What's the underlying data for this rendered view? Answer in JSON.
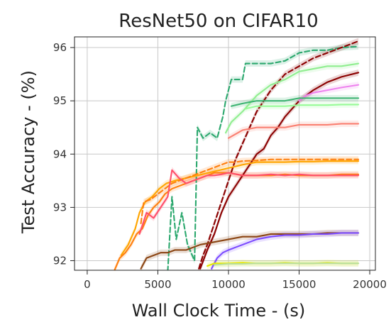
{
  "chart_data": {
    "type": "line",
    "title": "ResNet50 on CIFAR10",
    "xlabel": "Wall Clock Time - (s)",
    "ylabel": "Test Accuracy - (%)",
    "xlim": [
      -900,
      20400
    ],
    "ylim": [
      91.82,
      96.2
    ],
    "xticks": [
      0,
      5000,
      10000,
      15000,
      20000
    ],
    "yticks": [
      92,
      93,
      94,
      95,
      96
    ],
    "grid": true,
    "legend": "none",
    "series": [
      {
        "color": "#2ca86e",
        "style": "dashed",
        "band": true,
        "points": [
          [
            5700,
            91.8
          ],
          [
            6000,
            93.2
          ],
          [
            6300,
            92.4
          ],
          [
            6700,
            92.9
          ],
          [
            7100,
            92.3
          ],
          [
            7600,
            92.0
          ],
          [
            7800,
            94.5
          ],
          [
            8200,
            94.3
          ],
          [
            8700,
            94.4
          ],
          [
            9200,
            94.3
          ],
          [
            9600,
            94.7
          ],
          [
            9800,
            95.0
          ],
          [
            10200,
            95.4
          ],
          [
            11000,
            95.4
          ],
          [
            11200,
            95.7
          ],
          [
            12000,
            95.7
          ],
          [
            13000,
            95.7
          ],
          [
            14000,
            95.75
          ],
          [
            15000,
            95.9
          ],
          [
            16000,
            95.95
          ],
          [
            17000,
            95.95
          ],
          [
            18000,
            96.0
          ],
          [
            19200,
            96.02
          ]
        ]
      },
      {
        "color": "#8b0000",
        "style": "dashed",
        "band": true,
        "points": [
          [
            7900,
            91.85
          ],
          [
            8200,
            92.1
          ],
          [
            8500,
            92.3
          ],
          [
            9000,
            92.7
          ],
          [
            9500,
            93.1
          ],
          [
            10000,
            93.5
          ],
          [
            10500,
            93.9
          ],
          [
            11000,
            94.2
          ],
          [
            11500,
            94.5
          ],
          [
            12000,
            94.8
          ],
          [
            12500,
            95.0
          ],
          [
            13000,
            95.2
          ],
          [
            13500,
            95.35
          ],
          [
            14000,
            95.5
          ],
          [
            15000,
            95.65
          ],
          [
            16000,
            95.8
          ],
          [
            17000,
            95.9
          ],
          [
            18000,
            96.0
          ],
          [
            19200,
            96.12
          ]
        ]
      },
      {
        "color": "#8b0000",
        "style": "solid",
        "band": true,
        "points": [
          [
            8000,
            91.85
          ],
          [
            8500,
            92.2
          ],
          [
            9000,
            92.5
          ],
          [
            9500,
            92.9
          ],
          [
            10000,
            93.2
          ],
          [
            10500,
            93.4
          ],
          [
            11000,
            93.6
          ],
          [
            11500,
            93.8
          ],
          [
            12000,
            94.0
          ],
          [
            12500,
            94.1
          ],
          [
            13000,
            94.35
          ],
          [
            13500,
            94.5
          ],
          [
            14000,
            94.7
          ],
          [
            15000,
            95.0
          ],
          [
            16000,
            95.2
          ],
          [
            17000,
            95.35
          ],
          [
            18000,
            95.45
          ],
          [
            19200,
            95.53
          ]
        ]
      },
      {
        "color": "#90ee90",
        "style": "solid",
        "band": true,
        "points": [
          [
            9800,
            94.4
          ],
          [
            10200,
            94.6
          ],
          [
            11000,
            94.8
          ],
          [
            12000,
            95.1
          ],
          [
            13000,
            95.3
          ],
          [
            14000,
            95.4
          ],
          [
            15000,
            95.55
          ],
          [
            16000,
            95.6
          ],
          [
            17000,
            95.65
          ],
          [
            18000,
            95.65
          ],
          [
            19200,
            95.7
          ]
        ]
      },
      {
        "color": "#ee82ee",
        "style": "solid",
        "band": true,
        "points": [
          [
            15000,
            95.0
          ],
          [
            15500,
            95.1
          ],
          [
            16000,
            95.15
          ],
          [
            17000,
            95.2
          ],
          [
            18000,
            95.25
          ],
          [
            19200,
            95.3
          ]
        ]
      },
      {
        "color": "#3cb371",
        "style": "solid",
        "band": true,
        "points": [
          [
            10200,
            94.9
          ],
          [
            11000,
            94.95
          ],
          [
            12000,
            95.0
          ],
          [
            13000,
            95.0
          ],
          [
            14000,
            95.0
          ],
          [
            15000,
            95.05
          ],
          [
            16000,
            95.05
          ],
          [
            17000,
            95.05
          ],
          [
            18000,
            95.05
          ],
          [
            19200,
            95.05
          ]
        ]
      },
      {
        "color": "#98fb98",
        "style": "solid",
        "band": true,
        "points": [
          [
            11200,
            94.85
          ],
          [
            12000,
            94.9
          ],
          [
            13000,
            94.9
          ],
          [
            14000,
            94.9
          ],
          [
            15000,
            94.92
          ],
          [
            16000,
            94.92
          ],
          [
            17000,
            94.92
          ],
          [
            18000,
            94.93
          ],
          [
            19200,
            94.93
          ]
        ]
      },
      {
        "color": "#fa8072",
        "style": "solid",
        "band": true,
        "points": [
          [
            10000,
            94.3
          ],
          [
            11000,
            94.45
          ],
          [
            12000,
            94.5
          ],
          [
            13000,
            94.5
          ],
          [
            14000,
            94.5
          ],
          [
            15000,
            94.55
          ],
          [
            16000,
            94.55
          ],
          [
            17000,
            94.55
          ],
          [
            18000,
            94.57
          ],
          [
            19200,
            94.57
          ]
        ]
      },
      {
        "color": "#ffa500",
        "style": "solid",
        "band": true,
        "points": [
          [
            2400,
            92.1
          ],
          [
            2900,
            92.3
          ],
          [
            3400,
            92.6
          ],
          [
            3700,
            92.9
          ],
          [
            4100,
            93.1
          ],
          [
            4600,
            93.2
          ],
          [
            5100,
            93.35
          ],
          [
            5600,
            93.45
          ],
          [
            6200,
            93.5
          ],
          [
            7000,
            93.55
          ],
          [
            7800,
            93.6
          ],
          [
            8600,
            93.65
          ],
          [
            9400,
            93.7
          ],
          [
            10200,
            93.75
          ],
          [
            11000,
            93.8
          ],
          [
            12000,
            93.85
          ],
          [
            13000,
            93.85
          ],
          [
            14000,
            93.85
          ],
          [
            15000,
            93.86
          ],
          [
            16000,
            93.86
          ],
          [
            17000,
            93.87
          ],
          [
            18000,
            93.87
          ],
          [
            19200,
            93.87
          ]
        ]
      },
      {
        "color": "#ff7f0e",
        "style": "dashed",
        "band": true,
        "points": [
          [
            3800,
            92.7
          ],
          [
            4000,
            93.1
          ],
          [
            4500,
            93.15
          ],
          [
            5000,
            93.25
          ],
          [
            5500,
            93.35
          ],
          [
            6000,
            93.45
          ],
          [
            6500,
            93.5
          ],
          [
            7000,
            93.55
          ],
          [
            7500,
            93.6
          ],
          [
            8000,
            93.65
          ],
          [
            8500,
            93.7
          ],
          [
            9000,
            93.75
          ],
          [
            9500,
            93.8
          ],
          [
            10000,
            93.85
          ],
          [
            10500,
            93.85
          ],
          [
            11000,
            93.87
          ],
          [
            12000,
            93.88
          ],
          [
            13000,
            93.9
          ],
          [
            15000,
            93.9
          ],
          [
            17000,
            93.9
          ],
          [
            19200,
            93.9
          ]
        ]
      },
      {
        "color": "#ff7f0e",
        "style": "solid",
        "band": true,
        "points": [
          [
            1900,
            91.8
          ],
          [
            2300,
            92.05
          ],
          [
            2700,
            92.15
          ],
          [
            3100,
            92.3
          ],
          [
            3500,
            92.5
          ],
          [
            3900,
            92.6
          ],
          [
            4300,
            92.85
          ],
          [
            4700,
            93.0
          ],
          [
            5100,
            93.1
          ],
          [
            5500,
            93.25
          ],
          [
            6000,
            93.35
          ],
          [
            6500,
            93.4
          ],
          [
            7000,
            93.45
          ],
          [
            7500,
            93.5
          ],
          [
            8000,
            93.55
          ],
          [
            8500,
            93.6
          ],
          [
            9000,
            93.65
          ],
          [
            9500,
            93.65
          ],
          [
            10000,
            93.65
          ],
          [
            11000,
            93.6
          ],
          [
            12000,
            93.6
          ],
          [
            13000,
            93.6
          ],
          [
            14000,
            93.62
          ],
          [
            15000,
            93.6
          ],
          [
            16000,
            93.6
          ],
          [
            17000,
            93.6
          ],
          [
            18000,
            93.62
          ],
          [
            19200,
            93.62
          ]
        ]
      },
      {
        "color": "#ff4f6a",
        "style": "solid",
        "band": true,
        "points": [
          [
            3700,
            92.5
          ],
          [
            4200,
            92.9
          ],
          [
            4700,
            92.8
          ],
          [
            5200,
            93.0
          ],
          [
            5700,
            93.2
          ],
          [
            6000,
            93.7
          ],
          [
            6500,
            93.55
          ],
          [
            7000,
            93.45
          ],
          [
            7500,
            93.5
          ],
          [
            8000,
            93.55
          ],
          [
            8500,
            93.6
          ],
          [
            9000,
            93.6
          ],
          [
            9500,
            93.62
          ],
          [
            10000,
            93.65
          ],
          [
            11000,
            93.6
          ],
          [
            12000,
            93.6
          ],
          [
            13000,
            93.62
          ],
          [
            14000,
            93.6
          ],
          [
            15000,
            93.62
          ],
          [
            16000,
            93.6
          ],
          [
            17000,
            93.6
          ],
          [
            18000,
            93.6
          ],
          [
            19200,
            93.6
          ]
        ]
      },
      {
        "color": "#8b4513",
        "style": "solid",
        "band": true,
        "points": [
          [
            3800,
            91.85
          ],
          [
            4200,
            92.05
          ],
          [
            4700,
            92.1
          ],
          [
            5200,
            92.15
          ],
          [
            5700,
            92.15
          ],
          [
            6200,
            92.2
          ],
          [
            7000,
            92.2
          ],
          [
            7500,
            92.25
          ],
          [
            8000,
            92.3
          ],
          [
            9000,
            92.35
          ],
          [
            10000,
            92.4
          ],
          [
            11000,
            92.45
          ],
          [
            12000,
            92.45
          ],
          [
            13000,
            92.5
          ],
          [
            14000,
            92.5
          ],
          [
            15000,
            92.5
          ],
          [
            16000,
            92.5
          ],
          [
            17000,
            92.52
          ],
          [
            18000,
            92.52
          ],
          [
            19200,
            92.52
          ]
        ]
      },
      {
        "color": "#7b4bff",
        "style": "solid",
        "band": true,
        "points": [
          [
            8800,
            91.85
          ],
          [
            9200,
            92.05
          ],
          [
            9600,
            92.15
          ],
          [
            10000,
            92.2
          ],
          [
            10500,
            92.25
          ],
          [
            11000,
            92.3
          ],
          [
            11500,
            92.35
          ],
          [
            12000,
            92.4
          ],
          [
            13000,
            92.45
          ],
          [
            14000,
            92.48
          ],
          [
            15000,
            92.48
          ],
          [
            16000,
            92.5
          ],
          [
            17000,
            92.5
          ],
          [
            18000,
            92.52
          ],
          [
            19200,
            92.52
          ]
        ]
      },
      {
        "color": "#e6e600",
        "style": "solid",
        "band": true,
        "points": [
          [
            8500,
            91.9
          ],
          [
            9000,
            91.95
          ],
          [
            10000,
            91.95
          ],
          [
            11000,
            91.96
          ],
          [
            12000,
            91.95
          ],
          [
            13000,
            91.95
          ],
          [
            14000,
            91.96
          ],
          [
            15000,
            91.95
          ],
          [
            16000,
            91.95
          ],
          [
            17000,
            91.96
          ],
          [
            18000,
            91.95
          ],
          [
            19200,
            91.95
          ]
        ]
      },
      {
        "color": "#b8e0a0",
        "style": "solid",
        "band": true,
        "points": [
          [
            9000,
            91.92
          ],
          [
            10000,
            91.94
          ],
          [
            11000,
            91.94
          ],
          [
            12000,
            91.95
          ],
          [
            13000,
            91.95
          ],
          [
            14000,
            91.95
          ],
          [
            15000,
            91.95
          ],
          [
            16000,
            91.95
          ],
          [
            17000,
            91.95
          ],
          [
            18000,
            91.95
          ],
          [
            19200,
            91.95
          ]
        ]
      }
    ]
  }
}
